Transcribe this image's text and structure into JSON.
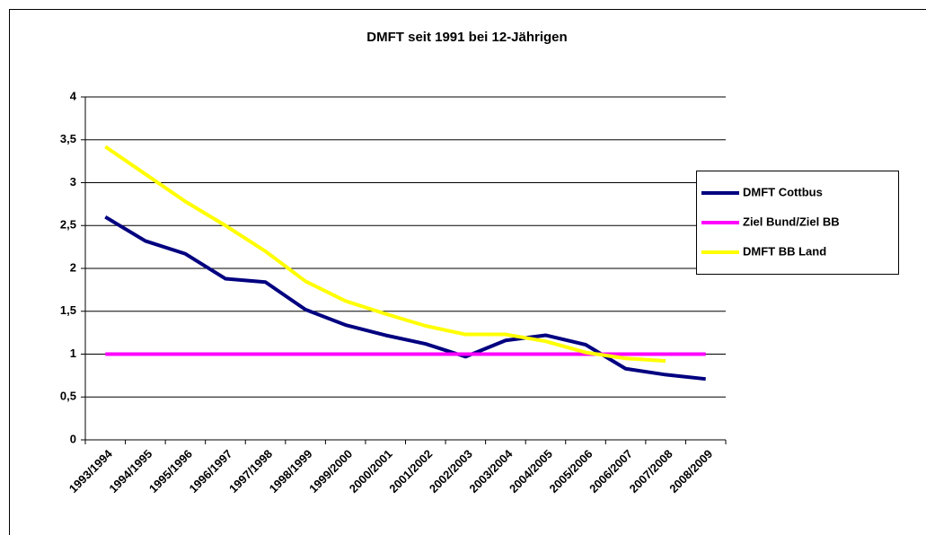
{
  "chart_data": {
    "type": "line",
    "title": "DMFT seit 1991 bei 12-Jährigen",
    "categories": [
      "1993/1994",
      "1994/1995",
      "1995/1996",
      "1996/1997",
      "1997/1998",
      "1998/1999",
      "1999/2000",
      "2000/2001",
      "2001/2002",
      "2002/2003",
      "2003/2004",
      "2004/2005",
      "2005/2006",
      "2006/2007",
      "2007/2008",
      "2008/2009"
    ],
    "series": [
      {
        "name": "DMFT Cottbus",
        "color": "#000080",
        "values": [
          2.6,
          2.32,
          2.17,
          1.88,
          1.84,
          1.52,
          1.34,
          1.22,
          1.12,
          0.97,
          1.16,
          1.22,
          1.11,
          0.83,
          0.76,
          0.71
        ]
      },
      {
        "name": "Ziel Bund/Ziel BB",
        "color": "#ff00ff",
        "values": [
          1,
          1,
          1,
          1,
          1,
          1,
          1,
          1,
          1,
          1,
          1,
          1,
          1,
          1,
          1,
          1
        ]
      },
      {
        "name": "DMFT BB Land",
        "color": "#ffff00",
        "values": [
          3.42,
          3.1,
          2.78,
          2.5,
          2.2,
          1.85,
          1.62,
          1.47,
          1.33,
          1.23,
          1.23,
          1.15,
          1.02,
          0.95,
          0.92,
          null
        ]
      }
    ],
    "ylim": [
      0,
      4
    ],
    "yticks": [
      0,
      {
        "value": 0.5,
        "label": "0,5"
      },
      1,
      {
        "value": 1.5,
        "label": "1,5"
      },
      2,
      {
        "value": 2.5,
        "label": "2,5"
      },
      3,
      {
        "value": 3.5,
        "label": "3,5"
      },
      4
    ],
    "grid": true,
    "legend": "right"
  }
}
